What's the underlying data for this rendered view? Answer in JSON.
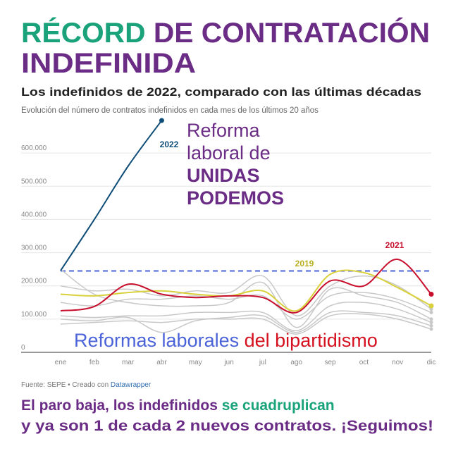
{
  "header": {
    "title_highlight": "RÉCORD",
    "title_rest": "DE CONTRATACIÓN",
    "title_line2": "INDEFINIDA"
  },
  "chart_data": {
    "type": "line",
    "title": "Los indefinidos de 2022, comparado con las últimas décadas",
    "subtitle": "Evolución del número de contratos indefinidos en cada mes de los últimos 20 años",
    "categories": [
      "ene",
      "feb",
      "mar",
      "abr",
      "may",
      "jun",
      "jul",
      "ago",
      "sep",
      "oct",
      "nov",
      "dic"
    ],
    "ylim": [
      0,
      700000
    ],
    "yticks": [
      0,
      {
        "value": 100000,
        "label": "100.000"
      },
      {
        "value": 200000,
        "label": "200.000"
      },
      {
        "value": 300000,
        "label": "300.000"
      },
      {
        "value": 400000,
        "label": "400.000"
      },
      {
        "value": 500000,
        "label": "500.000"
      },
      {
        "value": 600000,
        "label": "600.000"
      }
    ],
    "grid": true,
    "reference_line": {
      "value": 245000,
      "color": "#4a63d8"
    },
    "series": [
      {
        "color": "#c8c8c8",
        "values": [
          250000,
          175000,
          150000,
          140000,
          140000,
          150000,
          210000,
          75000,
          190000,
          170000,
          150000,
          100000
        ]
      },
      {
        "color": "#c8c8c8",
        "values": [
          150000,
          140000,
          160000,
          160000,
          170000,
          160000,
          170000,
          100000,
          170000,
          180000,
          160000,
          120000
        ]
      },
      {
        "color": "#c8c8c8",
        "values": [
          110000,
          105000,
          110000,
          110000,
          120000,
          120000,
          120000,
          65000,
          140000,
          150000,
          130000,
          90000
        ]
      },
      {
        "color": "#c8c8c8",
        "values": [
          100000,
          95000,
          105000,
          60000,
          95000,
          105000,
          110000,
          60000,
          120000,
          120000,
          110000,
          80000
        ]
      },
      {
        "color": "#c8c8c8",
        "values": [
          200000,
          185000,
          190000,
          170000,
          185000,
          180000,
          230000,
          110000,
          200000,
          230000,
          200000,
          130000
        ]
      },
      {
        "color": "#c8c8c8",
        "values": [
          85000,
          90000,
          95000,
          90000,
          100000,
          100000,
          100000,
          55000,
          110000,
          115000,
          100000,
          70000
        ]
      },
      {
        "name": "2019",
        "color": "#d9d13c",
        "values": [
          175000,
          170000,
          180000,
          185000,
          175000,
          170000,
          185000,
          125000,
          235000,
          240000,
          195000,
          140000
        ]
      },
      {
        "name": "2021",
        "color": "#c8102e",
        "values": [
          125000,
          138000,
          205000,
          175000,
          165000,
          170000,
          165000,
          120000,
          215000,
          200000,
          280000,
          175000
        ]
      },
      {
        "name": "2022",
        "color": "#0e4d78",
        "values": [
          246000,
          400000,
          560000,
          698000,
          null,
          null,
          null,
          null,
          null,
          null,
          null,
          null
        ]
      }
    ]
  },
  "annotations": {
    "reform_lines": [
      "Reforma",
      "laboral de",
      "UNIDAS",
      "PODEMOS"
    ],
    "old_reforms_blue": "Reformas laborales",
    "old_reforms_red": "del bipartidismo"
  },
  "source": {
    "text": "Fuente: SEPE • Creado con",
    "link": "Datawrapper"
  },
  "footer": {
    "line1_purple": "El paro baja, los indefinidos",
    "line1_green": "se cuadruplican",
    "line2": "y ya son 1 de cada 2 nuevos contratos. ¡Seguimos!"
  }
}
